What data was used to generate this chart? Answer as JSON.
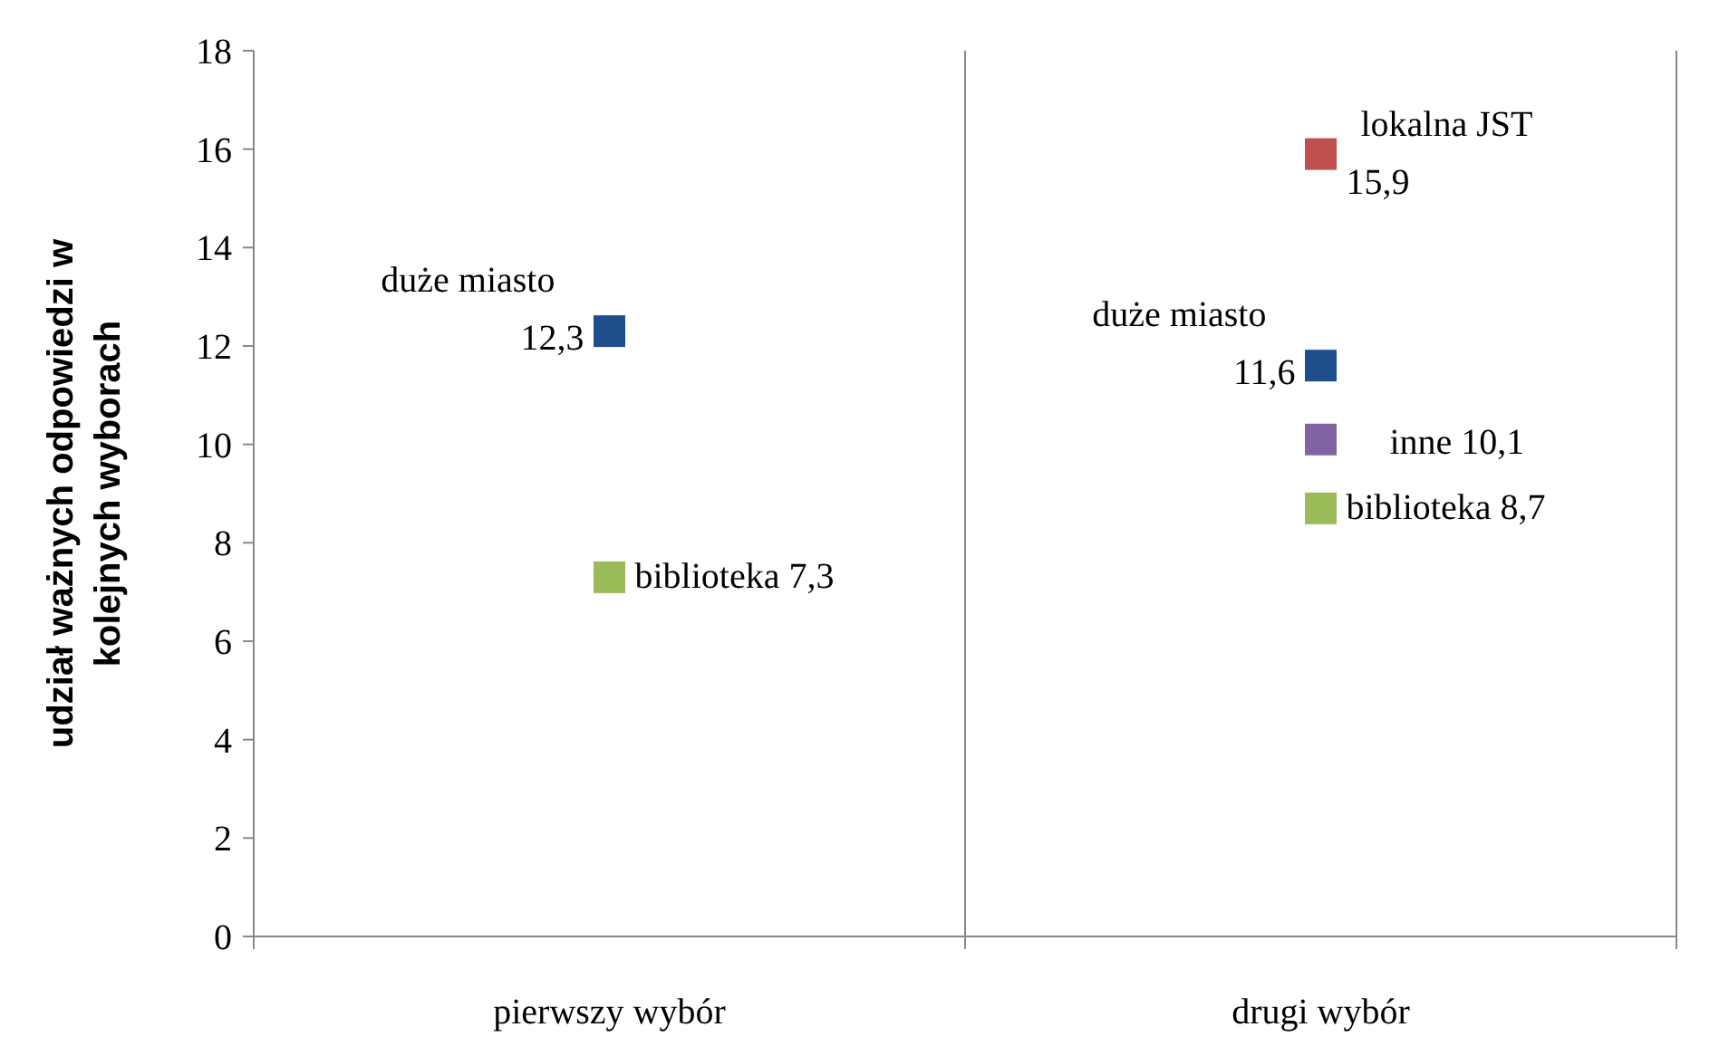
{
  "chart_data": {
    "type": "scatter",
    "ylabel": "udział ważnych odpowiedzi w kolejnych wyborach",
    "categories": [
      "pierwszy wybór",
      "drugi wybór"
    ],
    "series": [
      {
        "name": "duże miasto",
        "color": "#1f4e8c",
        "values": [
          12.3,
          11.6
        ],
        "value_labels": [
          "12,3",
          "11,6"
        ]
      },
      {
        "name": "biblioteka",
        "color": "#9bbb59",
        "values": [
          7.3,
          8.7
        ],
        "value_labels": [
          "7,3",
          "8,7"
        ]
      },
      {
        "name": "lokalna JST",
        "color": "#c0504d",
        "values": [
          null,
          15.9
        ],
        "value_labels": [
          null,
          "15,9"
        ]
      },
      {
        "name": "inne",
        "color": "#8064a2",
        "values": [
          null,
          10.1
        ],
        "value_labels": [
          null,
          "10,1"
        ]
      }
    ],
    "ylim": [
      0,
      18
    ],
    "yticks": [
      0,
      2,
      4,
      6,
      8,
      10,
      12,
      14,
      16,
      18
    ],
    "grid": "x",
    "marker": "square"
  }
}
